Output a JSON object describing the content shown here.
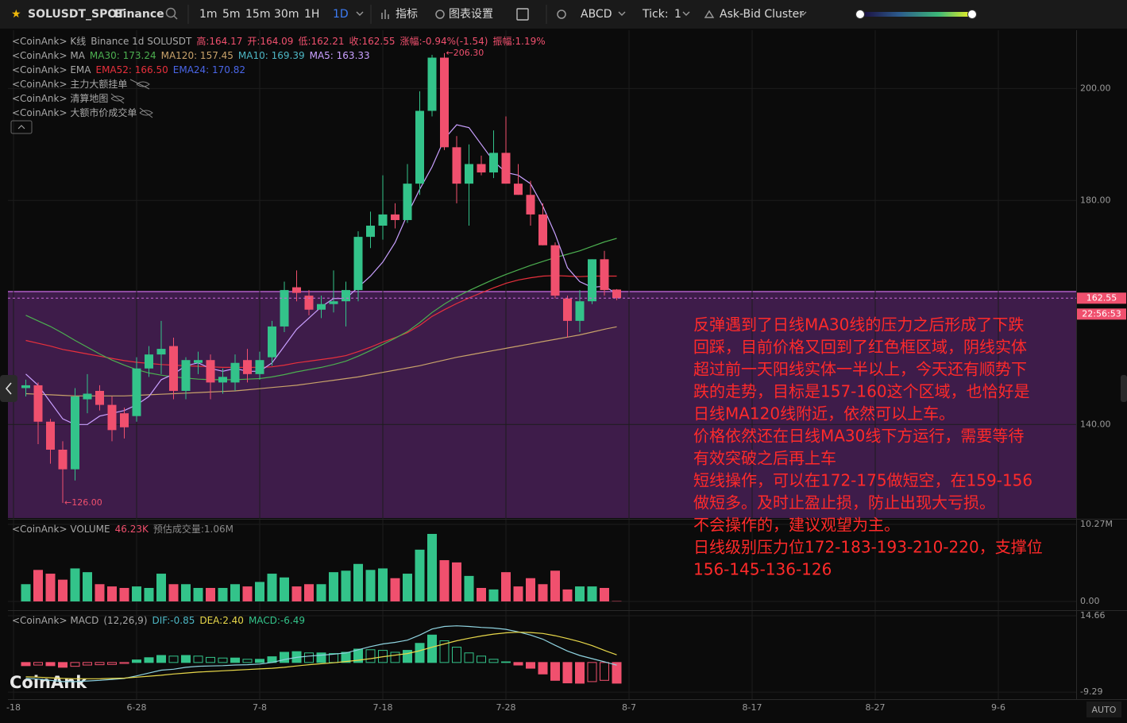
{
  "toolbar": {
    "symbol": "SOLUSDT_SPOT",
    "exchange": "Binance",
    "intervals": [
      "1m",
      "5m",
      "15m",
      "30m",
      "1H",
      "1D"
    ],
    "indicators": "指标",
    "settings": "图表设置",
    "drawing": "ABCD",
    "tick_label": "Tick:",
    "tick_value": "1",
    "cluster": "Ask-Bid Cluster"
  },
  "watermark": "CoinAnk",
  "auto": "AUTO",
  "annotation": [
    "反弹遇到了日线MA30线的压力之后形成了下跌",
    "回踩，目前价格又回到了红色框区域，阴线实体",
    "超过前一天阳线实体一半以上，今天还有顺势下",
    "跌的走势，目标是157-160这个区域，也恰好是",
    "日线MA120线附近，依然可以上车。",
    "价格依然还在日线MA30线下方运行，需要等待",
    "有效突破之后再上车",
    "短线操作，可以在172-175做短空，在159-156",
    "做短多。及时止盈止损，防止出现大亏损。",
    "不会操作的，建议观望为主。",
    "日线级别压力位172-183-193-210-220，支撑位",
    "156-145-136-126"
  ],
  "x_axis": {
    "xticks": [
      {
        "value": "6-18",
        "label": "-18"
      },
      "6-28",
      "7-8",
      "7-18",
      "7-28",
      "8-7",
      "8-17",
      "8-27",
      "9-6"
    ]
  },
  "chart_data": [
    {
      "type": "candlestick",
      "legend": [
        [
          {
            "text": "<CoinAnk> K线",
            "color": "#a8a8a8"
          },
          {
            "text": "Binance 1d SOLUSDT",
            "color": "#a8a8a8"
          },
          {
            "text": "高:164.17",
            "color": "#f0506e"
          },
          {
            "text": "开:164.09",
            "color": "#f0506e"
          },
          {
            "text": "低:162.21",
            "color": "#f0506e"
          },
          {
            "text": "收:162.55",
            "color": "#f0506e"
          },
          {
            "text": "涨幅:-0.94%(-1.54)",
            "color": "#f0506e"
          },
          {
            "text": "振幅:1.19%",
            "color": "#f0506e"
          }
        ],
        [
          {
            "text": "<CoinAnk> MA",
            "color": "#a8a8a8"
          },
          {
            "text": "MA30: 173.24",
            "color": "#4caf50"
          },
          {
            "text": "MA120: 157.45",
            "color": "#c8a26a"
          },
          {
            "text": "MA10: 169.39",
            "color": "#4db6c4"
          },
          {
            "text": "MA5: 163.33",
            "color": "#c9a0ff"
          }
        ],
        [
          {
            "text": "<CoinAnk> EMA",
            "color": "#a8a8a8"
          },
          {
            "text": "EMA52: 166.50",
            "color": "#e8303c"
          },
          {
            "text": "EMA24: 170.82",
            "color": "#4a66e8"
          }
        ],
        [
          {
            "text": "<CoinAnk> 主力大额挂单",
            "color": "#a8a8a8"
          }
        ],
        [
          {
            "text": "<CoinAnk> 清算地图",
            "color": "#a8a8a8"
          }
        ],
        [
          {
            "text": "<CoinAnk> 大额市价成交单",
            "color": "#a8a8a8"
          }
        ]
      ],
      "x": [
        "6-19",
        "6-20",
        "6-21",
        "6-22",
        "6-23",
        "6-24",
        "6-25",
        "6-26",
        "6-27",
        "6-28",
        "6-29",
        "6-30",
        "7-1",
        "7-2",
        "7-3",
        "7-4",
        "7-5",
        "7-6",
        "7-7",
        "7-8",
        "7-9",
        "7-10",
        "7-11",
        "7-12",
        "7-13",
        "7-14",
        "7-15",
        "7-16",
        "7-17",
        "7-18",
        "7-19",
        "7-20",
        "7-21",
        "7-22",
        "7-23",
        "7-24",
        "7-25",
        "7-26",
        "7-27",
        "7-28",
        "7-29",
        "7-30",
        "7-31",
        "8-1",
        "8-2",
        "8-3",
        "8-4",
        "8-5",
        "8-6"
      ],
      "open": [
        146.5,
        147,
        140.5,
        135.5,
        132,
        144.5,
        146,
        143.5,
        142,
        141.5,
        150,
        152.5,
        154,
        146,
        151,
        151.5,
        147.5,
        147.5,
        151.5,
        149,
        152,
        157.5,
        164.5,
        163,
        160.5,
        161.5,
        162,
        164,
        173.5,
        175.5,
        177.5,
        176.5,
        183,
        196,
        205.5,
        189.5,
        183,
        186.5,
        185,
        188.5,
        183,
        181,
        177.5,
        172,
        162.5,
        158.5,
        162,
        169.5,
        164.09
      ],
      "high": [
        148,
        147.5,
        141,
        137,
        146.5,
        149,
        147,
        145,
        143,
        152,
        154,
        158.5,
        155.5,
        152,
        153,
        152.5,
        150,
        152.5,
        153.5,
        153,
        158.5,
        165.5,
        167.5,
        164,
        163,
        167.5,
        165.5,
        174.5,
        178,
        184.5,
        179.5,
        186.5,
        199.5,
        206,
        206.3,
        191.5,
        190,
        188,
        192.5,
        195,
        186.5,
        183.5,
        179.5,
        172.5,
        163,
        164,
        169.5,
        171,
        164.17
      ],
      "low": [
        145,
        136.5,
        133,
        126,
        130,
        142,
        142.5,
        137,
        137.5,
        140.5,
        148.5,
        149,
        144.5,
        144.5,
        149,
        144.5,
        145.5,
        146,
        147.5,
        148,
        150.5,
        156.5,
        162,
        159.5,
        159,
        160,
        157.5,
        162,
        171.5,
        173,
        175,
        176,
        181,
        195,
        189,
        179.5,
        175.5,
        184.5,
        184,
        183,
        181,
        175.5,
        172,
        162.5,
        155.5,
        156.5,
        161.5,
        163,
        162.21
      ],
      "close": [
        147,
        140.5,
        135.5,
        132,
        145,
        145.5,
        143.5,
        139,
        139.5,
        150,
        152.5,
        153.5,
        146,
        151.5,
        151.5,
        147.5,
        148.5,
        151,
        149,
        151.5,
        157.5,
        164,
        163.5,
        160.5,
        161.5,
        162,
        164,
        173.5,
        175.5,
        177.5,
        176.5,
        183,
        196,
        205.5,
        189.5,
        183,
        186.5,
        185,
        188.5,
        183,
        181,
        177.5,
        172,
        163,
        158.5,
        162,
        169.5,
        164,
        162.55
      ],
      "up_color": "#33c38a",
      "down_color": "#f0506e",
      "lines": [
        {
          "color": "#c8a26a",
          "values": [
            145.5,
            145.4,
            145.3,
            145.2,
            145.1,
            145.1,
            145.1,
            145.1,
            145.1,
            145.2,
            145.3,
            145.4,
            145.5,
            145.6,
            145.7,
            145.8,
            145.9,
            146.0,
            146.2,
            146.4,
            146.6,
            146.8,
            147.0,
            147.3,
            147.6,
            147.9,
            148.2,
            148.5,
            148.9,
            149.3,
            149.7,
            150.1,
            150.5,
            151.0,
            151.5,
            152.0,
            152.4,
            152.8,
            153.2,
            153.6,
            154.0,
            154.4,
            154.8,
            155.2,
            155.6,
            156.0,
            156.5,
            157.0,
            157.45
          ]
        },
        {
          "color": "#e8303c",
          "values": [
            155.0,
            154.5,
            154.0,
            153.4,
            153.0,
            152.6,
            152.2,
            151.8,
            151.4,
            151.1,
            150.9,
            150.7,
            150.6,
            150.5,
            150.4,
            150.3,
            150.2,
            150.2,
            150.2,
            150.2,
            150.3,
            150.6,
            151.0,
            151.3,
            151.6,
            151.9,
            152.3,
            153.0,
            153.8,
            154.7,
            155.5,
            156.4,
            157.7,
            159.3,
            160.5,
            161.6,
            162.6,
            163.5,
            164.4,
            165.2,
            165.8,
            166.2,
            166.5,
            166.6,
            166.5,
            166.4,
            166.5,
            166.5,
            166.5
          ]
        },
        {
          "color": "#4caf50",
          "values": [
            159.5,
            158.5,
            157.5,
            156.3,
            155.0,
            153.8,
            152.6,
            151.5,
            150.6,
            149.8,
            149.2,
            148.8,
            148.5,
            148.3,
            148.1,
            148.0,
            148.0,
            148.0,
            148.1,
            148.2,
            148.5,
            148.9,
            149.4,
            149.8,
            150.2,
            150.7,
            151.3,
            152.2,
            153.2,
            154.3,
            155.4,
            156.6,
            158.2,
            160.0,
            161.5,
            162.8,
            163.9,
            164.9,
            165.9,
            166.8,
            167.6,
            168.4,
            169.1,
            169.8,
            170.4,
            171.0,
            171.8,
            172.6,
            173.24
          ]
        },
        {
          "color": "#c9a0ff",
          "values": [
            149,
            147,
            144,
            141,
            140,
            140,
            141.5,
            142,
            142.5,
            143.5,
            145,
            148,
            149,
            150.5,
            151,
            150,
            149.5,
            150,
            149.5,
            149.5,
            151,
            154,
            157,
            159,
            161,
            162.5,
            162.5,
            164.5,
            166.5,
            169,
            172.5,
            177.5,
            182,
            186,
            191,
            193.5,
            193,
            190,
            187,
            185,
            184.5,
            183,
            179,
            174,
            168,
            165.5,
            164.5,
            164.7,
            163.33
          ]
        }
      ],
      "markers": [
        {
          "x": "7-23",
          "value": 206.3,
          "label": "←206.30",
          "color": "#f0506e"
        },
        {
          "x": "6-22",
          "value": 126,
          "label": "←126.00",
          "color": "#f0506e"
        }
      ],
      "last_price": {
        "value": 162.55,
        "label": "162.55"
      },
      "countdown": "22:56:53",
      "ylim": [
        123.3,
        210.4
      ],
      "yticks": [
        {
          "value": 140,
          "label": "140.00"
        },
        {
          "value": 180,
          "label": "180.00"
        },
        {
          "value": 200,
          "label": "200.00"
        }
      ]
    },
    {
      "type": "bar",
      "legend": [
        [
          {
            "text": "<CoinAnk> VOLUME",
            "color": "#a8a8a8"
          },
          {
            "text": "46.23K",
            "color": "#f0506e"
          },
          {
            "text": "预估成交量:1.06M",
            "color": "#8a8a8a"
          }
        ]
      ],
      "values": [
        2.3,
        4.2,
        3.7,
        2.9,
        4.4,
        3.9,
        2.3,
        2.0,
        1.8,
        2.0,
        1.8,
        3.7,
        2.3,
        2.3,
        1.8,
        1.8,
        1.8,
        2.3,
        2.0,
        2.6,
        3.7,
        3.2,
        2.0,
        2.3,
        2.3,
        3.9,
        4.1,
        5.0,
        4.2,
        4.4,
        3.1,
        3.7,
        6.9,
        9.0,
        5.5,
        5.2,
        3.4,
        1.8,
        1.6,
        3.9,
        2.0,
        3.1,
        2.3,
        4.1,
        1.6,
        2.0,
        2.0,
        1.8,
        0.04623
      ],
      "ylim": [
        -1.06,
        10.8
      ],
      "yticks": [
        {
          "value": 0,
          "label": "0.00"
        },
        {
          "value": 10.27,
          "label": "10.27M"
        }
      ]
    },
    {
      "type": "macd",
      "legend": [
        [
          {
            "text": "<CoinAnk> MACD",
            "color": "#a8a8a8"
          },
          {
            "text": "(12,26,9)",
            "color": "#a8a8a8"
          },
          {
            "text": "DIF:-0.85",
            "color": "#4db6c4"
          },
          {
            "text": "DEA:2.40",
            "color": "#e8d84a"
          },
          {
            "text": "MACD:-6.49",
            "color": "#33c38a"
          }
        ]
      ],
      "values": [
        -1.0,
        -0.8,
        -1.0,
        -1.5,
        -1.2,
        -0.8,
        -0.7,
        -0.6,
        -0.3,
        0.8,
        1.5,
        2.2,
        2.0,
        2.2,
        2.0,
        1.6,
        1.4,
        1.4,
        1.0,
        1.0,
        1.8,
        3.2,
        3.4,
        3.0,
        3.0,
        2.8,
        3.2,
        4.2,
        4.0,
        3.8,
        3.2,
        3.8,
        6.0,
        8.6,
        6.8,
        4.8,
        3.0,
        2.0,
        1.0,
        0.2,
        -0.8,
        -1.8,
        -3.6,
        -5.6,
        -6.4,
        -6.5,
        -6.0,
        -5.6,
        -6.49
      ],
      "series": [
        {
          "color": "#8fd3e0",
          "values": [
            -5,
            -5.2,
            -5.6,
            -6,
            -6,
            -5.8,
            -5.6,
            -5.3,
            -5,
            -4.2,
            -3.3,
            -2.4,
            -2.1,
            -1.5,
            -1.2,
            -1.1,
            -1,
            -0.8,
            -0.7,
            -0.5,
            0,
            0.9,
            1.6,
            2,
            2.3,
            2.6,
            3,
            4,
            5,
            5.8,
            6.3,
            7,
            8.6,
            10.5,
            11.3,
            11.5,
            11.3,
            11,
            10.8,
            10.4,
            9.6,
            8.6,
            7.3,
            5.4,
            3.6,
            2.2,
            1.2,
            0.2,
            -0.85
          ]
        },
        {
          "color": "#e8d84a",
          "values": [
            -4.5,
            -4.6,
            -4.8,
            -5,
            -5.1,
            -5.1,
            -5.1,
            -5,
            -4.9,
            -4.6,
            -4.3,
            -4,
            -3.6,
            -3.3,
            -3,
            -2.8,
            -2.6,
            -2.4,
            -2.2,
            -2,
            -1.8,
            -1.5,
            -1.1,
            -0.7,
            -0.4,
            -0.1,
            0.3,
            0.7,
            1.2,
            1.8,
            2.3,
            2.8,
            3.7,
            4.8,
            5.8,
            6.8,
            7.6,
            8.3,
            8.9,
            9.3,
            9.5,
            9.4,
            9.1,
            8.4,
            7.5,
            6.5,
            5.3,
            3.8,
            2.4
          ]
        }
      ],
      "up_color": "#33c38a",
      "down_color": "#f0506e",
      "ylim": [
        -11.5,
        15.9
      ],
      "yticks": [
        {
          "value": -9.29
        },
        14.66
      ]
    }
  ]
}
